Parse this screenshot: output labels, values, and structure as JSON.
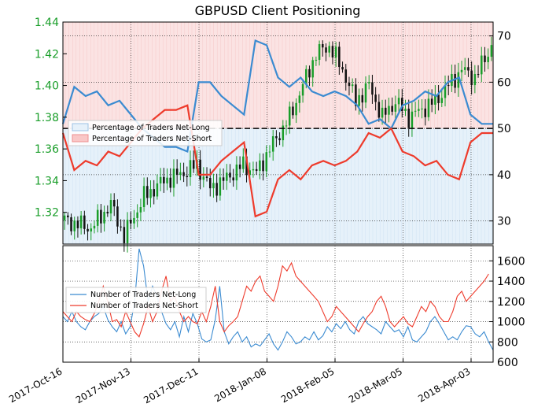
{
  "chart_data": [
    {
      "type": "line",
      "title": "GBPUSD Client Positioning",
      "ylim_left": [
        1.3,
        1.44
      ],
      "yticks_left": [
        "1.32",
        "1.34",
        "1.36",
        "1.38",
        "1.40",
        "1.42",
        "1.44"
      ],
      "ylim_right": [
        25,
        73
      ],
      "yticks_right": [
        "30",
        "40",
        "50",
        "60",
        "70"
      ],
      "reference_line": 50,
      "grid": true,
      "legend_position": "center-left",
      "colors": {
        "price_up": "#1a9e2a",
        "price_down": "#111111",
        "net_long": "#3b8bd1",
        "net_short": "#ee3b2c",
        "net_long_fill": "#e6f1fa",
        "net_short_fill": "#fbe3e3",
        "left_axis_text": "#1a9e2a"
      },
      "series": [
        {
          "name": "Percentage of Traders Net-Long",
          "values": [
            51,
            59,
            57,
            58,
            55,
            56,
            53,
            50,
            48,
            46,
            46,
            45,
            60,
            60,
            57,
            55,
            53,
            69,
            68,
            61,
            59,
            61,
            58,
            57,
            58,
            57,
            55,
            51,
            52,
            50,
            55,
            56,
            58,
            57,
            60,
            61,
            53,
            51,
            51
          ]
        },
        {
          "name": "Percentage of Traders Net-Short",
          "values": [
            49,
            41,
            43,
            42,
            45,
            44,
            47,
            50,
            52,
            54,
            54,
            55,
            40,
            40,
            43,
            45,
            47,
            31,
            32,
            39,
            41,
            39,
            42,
            43,
            42,
            43,
            45,
            49,
            48,
            50,
            45,
            44,
            42,
            43,
            40,
            39,
            47,
            49,
            49
          ]
        }
      ]
    },
    {
      "type": "line",
      "ylim": [
        600,
        1750
      ],
      "yticks": [
        "600",
        "800",
        "1000",
        "1200",
        "1400",
        "1600"
      ],
      "x_tick_labels": [
        "2017-Oct-16",
        "2017-Nov-13",
        "2017-Dec-11",
        "2018-Jan-08",
        "2018-Feb-05",
        "2018-Mar-05",
        "2018-Apr-03"
      ],
      "grid": true,
      "legend_position": "center-left",
      "series": [
        {
          "name": "Number of Traders Net-Long",
          "values": [
            1050,
            1000,
            1100,
            1000,
            950,
            920,
            1000,
            1050,
            1080,
            1150,
            1020,
            950,
            900,
            1000,
            880,
            950,
            1200,
            1720,
            1550,
            1200,
            1350,
            1250,
            1100,
            980,
            920,
            1000,
            850,
            1050,
            900,
            1080,
            980,
            830,
            800,
            820,
            1020,
            1350,
            900,
            780,
            850,
            900,
            800,
            850,
            750,
            780,
            760,
            820,
            880,
            780,
            720,
            800,
            900,
            850,
            780,
            800,
            850,
            820,
            900,
            820,
            860,
            950,
            900,
            980,
            930,
            1000,
            920,
            880,
            1000,
            1050,
            980,
            950,
            920,
            880,
            1000,
            950,
            900,
            920,
            850,
            950,
            820,
            800,
            850,
            900,
            1000,
            1050,
            980,
            900,
            820,
            850,
            820,
            900,
            960,
            950,
            880,
            850,
            900,
            800,
            720
          ]
        },
        {
          "name": "Number of Traders Net-Short",
          "values": [
            1100,
            1050,
            1000,
            1100,
            1050,
            1020,
            1000,
            1080,
            1200,
            1350,
            1200,
            1000,
            1020,
            950,
            1100,
            1000,
            900,
            850,
            980,
            1150,
            1000,
            1100,
            1300,
            1450,
            1200,
            1250,
            1100,
            1000,
            1050,
            1000,
            980,
            1100,
            1000,
            1150,
            1350,
            1000,
            900,
            960,
            1000,
            1050,
            1200,
            1350,
            1300,
            1400,
            1450,
            1300,
            1250,
            1200,
            1350,
            1550,
            1500,
            1580,
            1450,
            1400,
            1350,
            1300,
            1250,
            1200,
            1100,
            1000,
            1050,
            1150,
            1100,
            1050,
            1000,
            950,
            900,
            980,
            1050,
            1100,
            1200,
            1250,
            1150,
            1000,
            950,
            1000,
            1050,
            980,
            950,
            1050,
            1150,
            1100,
            1200,
            1150,
            1050,
            1000,
            1000,
            1100,
            1250,
            1300,
            1200,
            1250,
            1300,
            1350,
            1400,
            1470
          ]
        }
      ]
    }
  ]
}
